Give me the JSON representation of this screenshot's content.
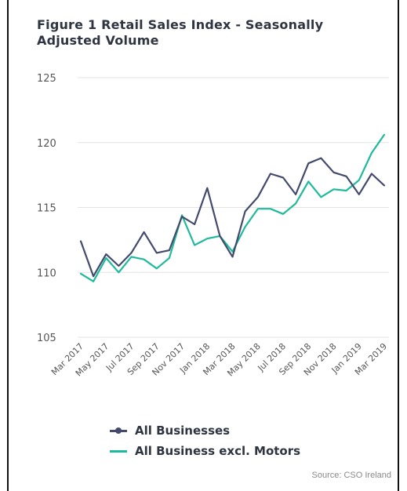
{
  "chart_data": {
    "type": "line",
    "title": "Figure 1 Retail Sales Index - Seasonally Adjusted Volume",
    "xlabel": "",
    "ylabel": "",
    "ylim": [
      105,
      125
    ],
    "yticks": [
      105,
      110,
      115,
      120,
      125
    ],
    "grid": true,
    "legend_position": "bottom",
    "x_tick_labels": [
      "Mar 2017",
      "May 2017",
      "Jul 2017",
      "Sep 2017",
      "Nov 2017",
      "Jan 2018",
      "Mar 2018",
      "May 2018",
      "Jul 2018",
      "Sep 2018",
      "Nov 2018",
      "Jan 2019",
      "Mar 2019"
    ],
    "x": [
      "Mar 2017",
      "Apr 2017",
      "May 2017",
      "Jun 2017",
      "Jul 2017",
      "Aug 2017",
      "Sep 2017",
      "Oct 2017",
      "Nov 2017",
      "Dec 2017",
      "Jan 2018",
      "Feb 2018",
      "Mar 2018",
      "Apr 2018",
      "May 2018",
      "Jun 2018",
      "Jul 2018",
      "Aug 2018",
      "Sep 2018",
      "Oct 2018",
      "Nov 2018",
      "Dec 2018",
      "Jan 2019",
      "Feb 2019",
      "Mar 2019"
    ],
    "series": [
      {
        "name": "All Businesses",
        "color": "#434a6b",
        "values": [
          112.4,
          109.7,
          111.4,
          110.5,
          111.5,
          113.1,
          111.5,
          111.7,
          114.3,
          113.7,
          116.5,
          112.8,
          111.2,
          114.7,
          115.8,
          117.6,
          117.3,
          116.0,
          118.4,
          118.8,
          117.7,
          117.4,
          116.0,
          117.6,
          116.7
        ]
      },
      {
        "name": "All Business excl. Motors",
        "color": "#1fba9b",
        "values": [
          109.9,
          109.3,
          111.1,
          110.0,
          111.2,
          111.0,
          110.3,
          111.1,
          114.4,
          112.1,
          112.6,
          112.8,
          111.6,
          113.5,
          114.9,
          114.9,
          114.5,
          115.3,
          117.0,
          115.8,
          116.4,
          116.3,
          117.1,
          119.2,
          120.6
        ]
      }
    ],
    "source": "Source: CSO Ireland"
  }
}
